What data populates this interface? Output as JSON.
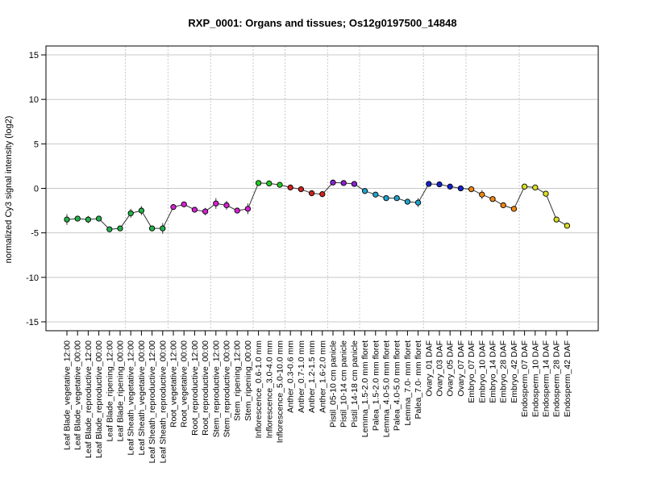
{
  "chart_data": {
    "type": "scatter",
    "title": "RXP_0001: Organs and tissues; Os12g0197500_14848",
    "xlabel": "",
    "ylabel": "normalized Cy3 signal intensity (log2)",
    "ylim": [
      -16,
      16
    ],
    "yticks": [
      -15,
      -10,
      -5,
      0,
      5,
      10,
      15
    ],
    "grid": true,
    "categories": [
      "Leaf Blade_vegetative_12:00",
      "Leaf Blade_vegetative_00:00",
      "Leaf Blade_reproductive_12:00",
      "Leaf Blade_reproductive_00:00",
      "Leaf Blade_ripening_12:00",
      "Leaf Blade_ripening_00:00",
      "Leaf Sheath_vegetative_12:00",
      "Leaf Sheath_vegetative_00:00",
      "Leaf Sheath_reproductive_12:00",
      "Leaf Sheath_reproductive_00:00",
      "Root_vegetative_12:00",
      "Root_vegetative_00:00",
      "Root_reproductive_12:00",
      "Root_reproductive_00:00",
      "Stem_reproductive_12:00",
      "Stem_reproductive_00:00",
      "Stem_ripening_12:00",
      "Stem_ripening_00:00",
      "Inflorescence_0.6-1.0 mm",
      "Inflorescence_3.0-4.0 mm",
      "Inflorescence_5.0-10.0 mm",
      "Anther_0.3-0.6 mm",
      "Anther_0.7-1.0 mm",
      "Anther_1.2-1.5 mm",
      "Anther_1.6-2.0 mm",
      "Pistil_05-10 cm panicle",
      "Pistil_10-14 cm panicle",
      "Pistil_14-18 cm panicle",
      "Lemma_1.5-2.0 mm floret",
      "Palea_1.5-2.0 mm floret",
      "Lemma_4.0-5.0 mm floret",
      "Palea_4.0-5.0 mm floret",
      "Lemma_7.0- mm floret",
      "Palea_7.0- mm floret",
      "Ovary_01 DAF",
      "Ovary_03 DAF",
      "Ovary_05 DAF",
      "Ovary_07 DAF",
      "Embryo_07 DAF",
      "Embryo_10 DAF",
      "Embryo_14 DAF",
      "Embryo_28 DAF",
      "Embryo_42 DAF",
      "Endosperm_07 DAF",
      "Endosperm_10 DAF",
      "Endosperm_14 DAF",
      "Endosperm_28 DAF",
      "Endosperm_42 DAF"
    ],
    "values": [
      -3.5,
      -3.4,
      -3.5,
      -3.4,
      -4.6,
      -4.5,
      -2.8,
      -2.5,
      -4.5,
      -4.5,
      -2.1,
      -1.8,
      -2.4,
      -2.6,
      -1.7,
      -1.9,
      -2.5,
      -2.3,
      0.6,
      0.55,
      0.4,
      0.1,
      -0.1,
      -0.55,
      -0.65,
      0.65,
      0.6,
      0.5,
      -0.3,
      -0.7,
      -1.1,
      -1.1,
      -1.5,
      -1.6,
      0.5,
      0.45,
      0.2,
      0.0,
      -0.1,
      -0.7,
      -1.2,
      -1.9,
      -2.3,
      0.2,
      0.1,
      -0.6,
      -3.5,
      -4.2
    ],
    "errors": [
      0.6,
      0.3,
      0.4,
      0.3,
      0.2,
      0.3,
      0.5,
      0.5,
      0.2,
      0.6,
      0.2,
      0.2,
      0.2,
      0.4,
      0.6,
      0.5,
      0.2,
      0.6,
      0.1,
      0.1,
      0.1,
      0.1,
      0.1,
      0.2,
      0.1,
      0.1,
      0.1,
      0.1,
      0.3,
      0.1,
      0.1,
      0.3,
      0.3,
      0.5,
      0.1,
      0.1,
      0.1,
      0.1,
      0.1,
      0.5,
      0.2,
      0.2,
      0.1,
      0.1,
      0.1,
      0.3,
      0.1,
      0.1
    ],
    "colors": [
      "#22b24c",
      "#22b24c",
      "#22b24c",
      "#22b24c",
      "#22b24c",
      "#22b24c",
      "#22b24c",
      "#22b24c",
      "#22b24c",
      "#22b24c",
      "#d322d3",
      "#d322d3",
      "#d322d3",
      "#d322d3",
      "#d322d3",
      "#d322d3",
      "#d322d3",
      "#d322d3",
      "#22cc22",
      "#22cc22",
      "#22cc22",
      "#cc2222",
      "#cc2222",
      "#cc2222",
      "#cc2222",
      "#8a22d3",
      "#8a22d3",
      "#8a22d3",
      "#1ea3cc",
      "#1ea3cc",
      "#1ea3cc",
      "#1ea3cc",
      "#1ea3cc",
      "#1ea3cc",
      "#1122cc",
      "#1122cc",
      "#1122cc",
      "#1122cc",
      "#ee8811",
      "#ee8811",
      "#ee8811",
      "#ee8811",
      "#ee8811",
      "#dddd22",
      "#dddd22",
      "#dddd22",
      "#dddd22",
      "#dddd22"
    ],
    "group_boundaries_after": [
      5,
      9,
      13,
      17,
      20,
      24,
      27,
      33,
      37,
      42
    ]
  }
}
